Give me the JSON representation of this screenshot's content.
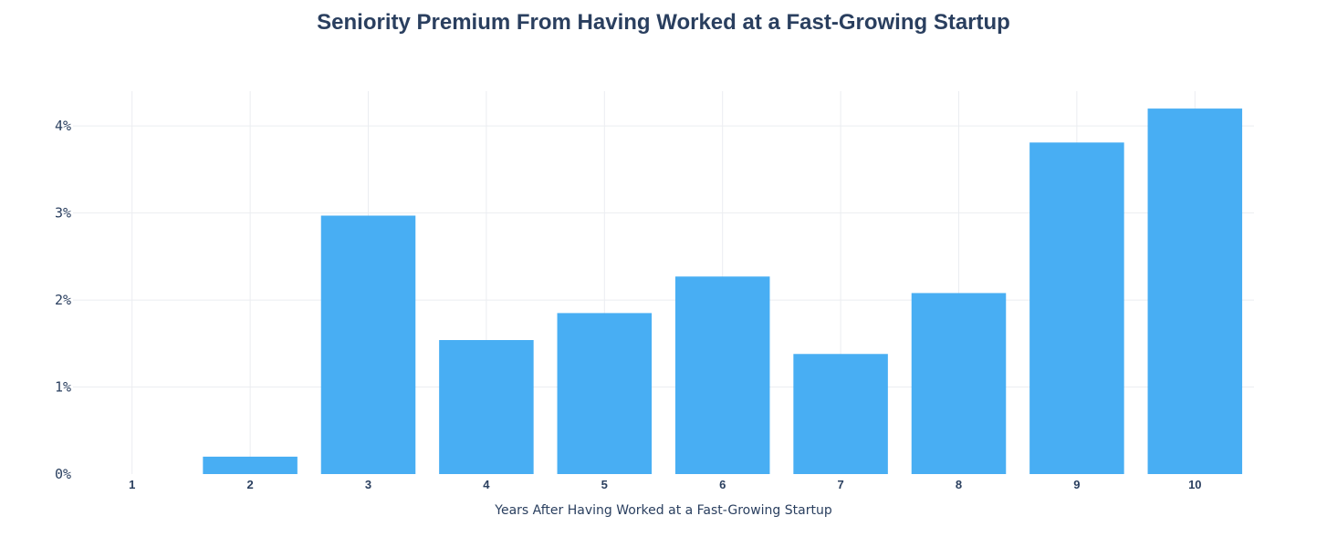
{
  "chart_data": {
    "type": "bar",
    "title": "Seniority Premium From Having Worked at a Fast-Growing Startup",
    "xlabel": "Years After Having Worked at a Fast-Growing Startup",
    "ylabel": "",
    "categories": [
      "1",
      "2",
      "3",
      "4",
      "5",
      "6",
      "7",
      "8",
      "9",
      "10"
    ],
    "values": [
      0.0,
      0.2,
      2.97,
      1.54,
      1.85,
      2.27,
      1.38,
      2.08,
      3.81,
      4.2
    ],
    "ylim": [
      0,
      4.4
    ],
    "yticks": [
      0,
      1,
      2,
      3,
      4
    ],
    "ytick_labels": [
      "0%",
      "1%",
      "2%",
      "3%",
      "4%"
    ],
    "grid": true,
    "legend": "none",
    "bar_color": "#48aef3",
    "text_color": "#2a3f5f",
    "grid_color": "#ebedf1"
  }
}
